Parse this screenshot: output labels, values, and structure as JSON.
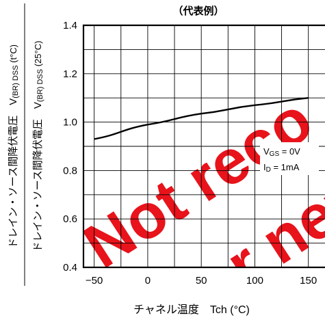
{
  "chart_data": {
    "type": "line",
    "title": "（代表例）",
    "xlabel": "チャネル温度　Tch (°C)",
    "ylabel_top": {
      "prefix": "ドレイン・ソース間降伏電圧　V",
      "sub": "(BR) DSS",
      "suffix": " (t°C)"
    },
    "ylabel_bottom": {
      "prefix": "ドレイン・ソース間降伏電圧　V",
      "sub": "(BR) DSS",
      "suffix": " (25°C)"
    },
    "xlim": [
      -60,
      170
    ],
    "ylim": [
      0.4,
      1.4
    ],
    "xticks": [
      -50,
      0,
      50,
      100,
      150
    ],
    "xtick_labels": [
      "−50",
      "0",
      "50",
      "100",
      "150"
    ],
    "yticks": [
      0.4,
      0.6,
      0.8,
      1.0,
      1.2,
      1.4
    ],
    "ytick_labels": [
      "0.4",
      "0.6",
      "0.8",
      "1.0",
      "1.2",
      "1.4"
    ],
    "grid": true,
    "x_grid_step": 25,
    "y_grid_step": 0.1,
    "series": [
      {
        "x": [
          -50,
          0,
          50,
          100,
          150
        ],
        "y": [
          0.93,
          0.99,
          1.035,
          1.07,
          1.1
        ]
      }
    ],
    "annotations": [
      {
        "main": "V",
        "sub": "GS",
        "rest": " = 0V"
      },
      {
        "main": "I",
        "sub": "D",
        "rest": " = 1mA"
      }
    ],
    "watermark": "Not recommended for new design",
    "colors": {
      "line": "#000000",
      "watermark": "#e8131b"
    }
  }
}
